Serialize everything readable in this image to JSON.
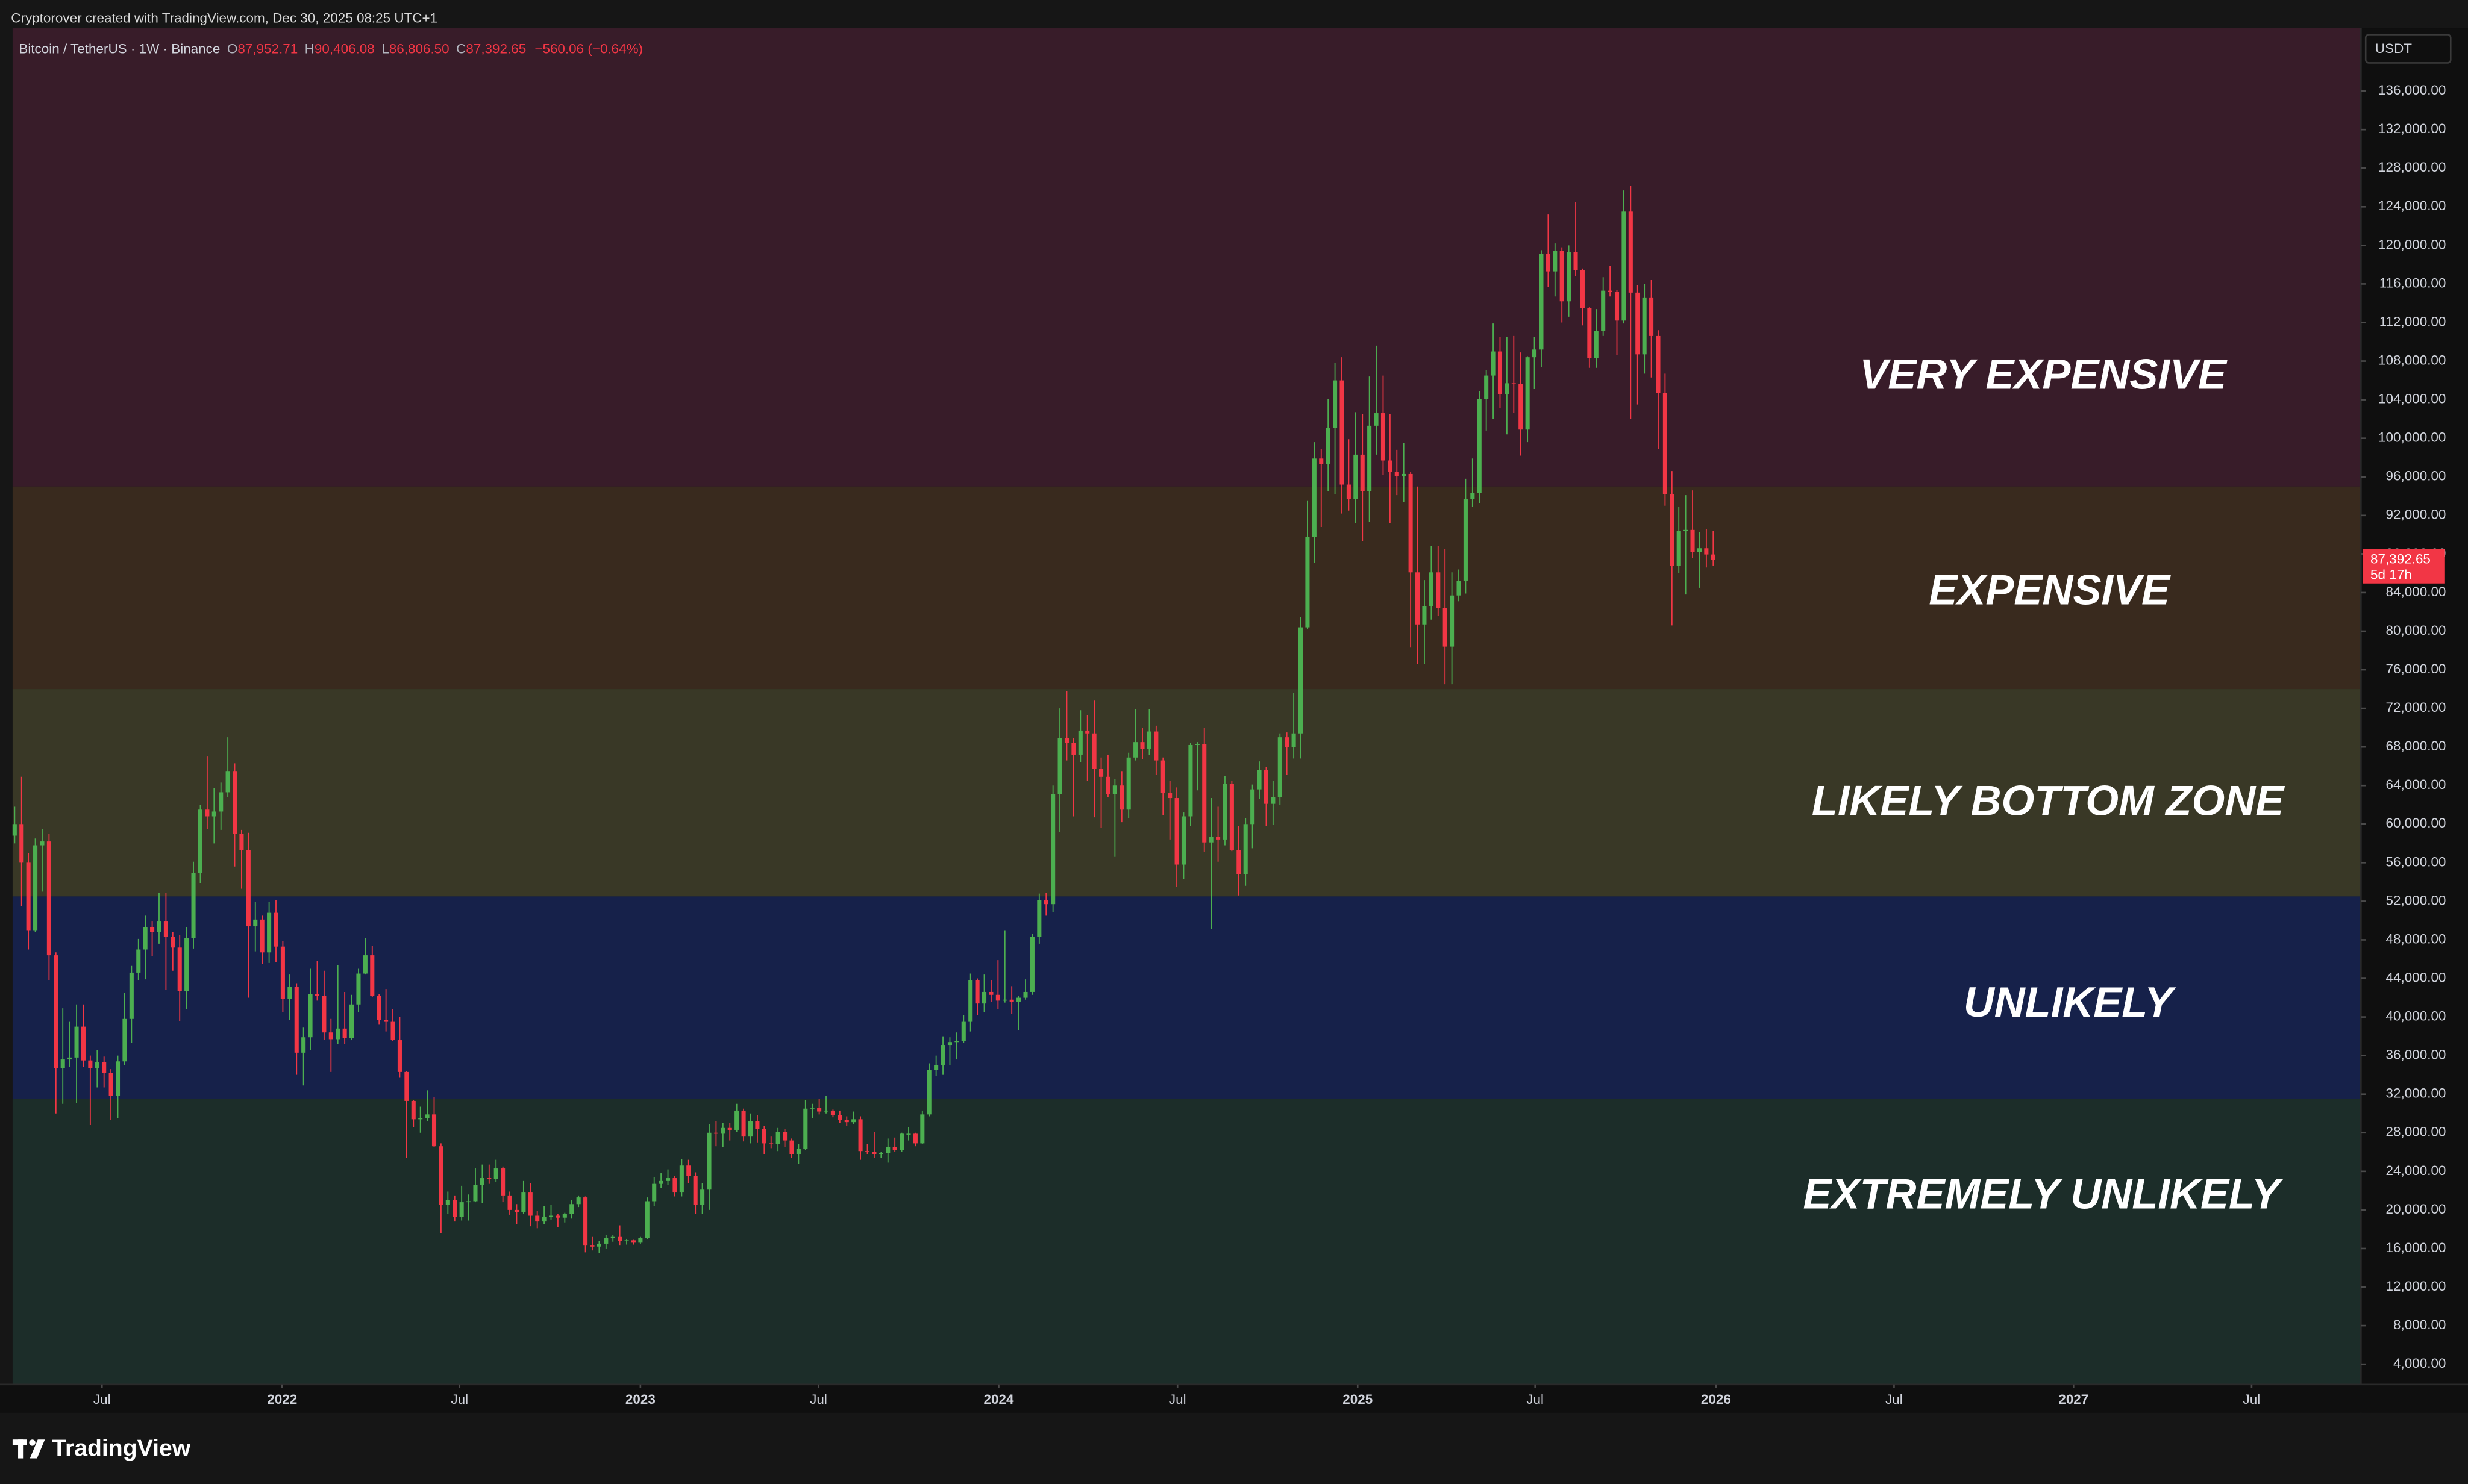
{
  "chart_data": {
    "type": "candlestick",
    "header": "Cryptorover created with TradingView.com, Dec 30, 2025 08:25 UTC+1",
    "symbol": "Bitcoin / TetherUS · 1W · Binance",
    "ohlc_legend": [
      {
        "key": "O",
        "value": "87,952.71"
      },
      {
        "key": "H",
        "value": "90,406.08"
      },
      {
        "key": "L",
        "value": "86,806.50"
      },
      {
        "key": "C",
        "value": "87,392.65"
      }
    ],
    "change": "−560.06 (−0.64%)",
    "currency": "USDT",
    "brand": "TradingView",
    "price_tag": {
      "label": "87,392.65",
      "countdown": "5d 17h"
    },
    "up_color": "#4caf50",
    "down_color": "#f23645",
    "grid": false,
    "zones": [
      {
        "label": "VERY EXPENSIVE",
        "from": 95000,
        "to": 142500,
        "color": "#381c29"
      },
      {
        "label": "EXPENSIVE",
        "from": 74000,
        "to": 95000,
        "color": "#392a1e"
      },
      {
        "label": "LIKELY BOTTOM ZONE",
        "from": 52500,
        "to": 74000,
        "color": "#393826"
      },
      {
        "label": "UNLIKELY",
        "from": 31500,
        "to": 52500,
        "color": "#16214a"
      },
      {
        "label": "EXTREMELY UNLIKELY",
        "from": 1900,
        "to": 31500,
        "color": "#1c2d29"
      }
    ],
    "xlim": [
      -0.3,
      341.2
    ],
    "xticks": [
      {
        "value": 12.7,
        "label": "Jul"
      },
      {
        "value": 38.9,
        "label": "2022"
      },
      {
        "value": 64.7,
        "label": "Jul"
      },
      {
        "value": 91.0,
        "label": "2023"
      },
      {
        "value": 116.9,
        "label": "Jul"
      },
      {
        "value": 143.1,
        "label": "2024"
      },
      {
        "value": 169.1,
        "label": "Jul"
      },
      {
        "value": 195.3,
        "label": "2025"
      },
      {
        "value": 221.1,
        "label": "Jul"
      },
      {
        "value": 247.4,
        "label": "2026"
      },
      {
        "value": 273.3,
        "label": "Jul"
      },
      {
        "value": 299.4,
        "label": "2027"
      },
      {
        "value": 325.3,
        "label": "Jul"
      }
    ],
    "ylim": [
      1900,
      142500
    ],
    "yticks": [
      {
        "value": 4000,
        "label": "4,000.00"
      },
      {
        "value": 8000,
        "label": "8,000.00"
      },
      {
        "value": 12000,
        "label": "12,000.00"
      },
      {
        "value": 16000,
        "label": "16,000.00"
      },
      {
        "value": 20000,
        "label": "20,000.00"
      },
      {
        "value": 24000,
        "label": "24,000.00"
      },
      {
        "value": 28000,
        "label": "28,000.00"
      },
      {
        "value": 32000,
        "label": "32,000.00"
      },
      {
        "value": 36000,
        "label": "36,000.00"
      },
      {
        "value": 40000,
        "label": "40,000.00"
      },
      {
        "value": 44000,
        "label": "44,000.00"
      },
      {
        "value": 48000,
        "label": "48,000.00"
      },
      {
        "value": 52000,
        "label": "52,000.00"
      },
      {
        "value": 56000,
        "label": "56,000.00"
      },
      {
        "value": 60000,
        "label": "60,000.00"
      },
      {
        "value": 64000,
        "label": "64,000.00"
      },
      {
        "value": 68000,
        "label": "68,000.00"
      },
      {
        "value": 72000,
        "label": "72,000.00"
      },
      {
        "value": 76000,
        "label": "76,000.00"
      },
      {
        "value": 80000,
        "label": "80,000.00"
      },
      {
        "value": 84000,
        "label": "84,000.00"
      },
      {
        "value": 88000,
        "label": "88,000.00"
      },
      {
        "value": 92000,
        "label": "92,000.00"
      },
      {
        "value": 96000,
        "label": "96,000.00"
      },
      {
        "value": 100000,
        "label": "100,000.00"
      },
      {
        "value": 104000,
        "label": "104,000.00"
      },
      {
        "value": 108000,
        "label": "108,000.00"
      },
      {
        "value": 112000,
        "label": "112,000.00"
      },
      {
        "value": 116000,
        "label": "116,000.00"
      },
      {
        "value": 120000,
        "label": "120,000.00"
      },
      {
        "value": 124000,
        "label": "124,000.00"
      },
      {
        "value": 128000,
        "label": "128,000.00"
      },
      {
        "value": 132000,
        "label": "132,000.00"
      },
      {
        "value": 136000,
        "label": "136,000.00"
      }
    ],
    "open": [
      58800,
      60000,
      56000,
      49000,
      57800,
      58200,
      46400,
      34700,
      35600,
      35800,
      39000,
      35500,
      34700,
      35300,
      34200,
      31800,
      35400,
      39800,
      44600,
      47000,
      49300,
      48800,
      49900,
      48300,
      47200,
      42700,
      48200,
      54900,
      61500,
      60800,
      61300,
      63300,
      65500,
      59000,
      57300,
      49400,
      50100,
      46700,
      50800,
      47300,
      41900,
      43100,
      36300,
      37900,
      42400,
      42200,
      38400,
      37700,
      38800,
      37800,
      41300,
      44500,
      46400,
      42200,
      39700,
      39500,
      37600,
      34300,
      31300,
      29400,
      29500,
      29900,
      26600,
      20500,
      21000,
      19300,
      20800,
      20900,
      22600,
      23300,
      23200,
      24300,
      21500,
      20000,
      19800,
      21800,
      19400,
      18800,
      19300,
      19400,
      19200,
      19600,
      20600,
      21300,
      16300,
      16200,
      16500,
      17100,
      17200,
      16800,
      16850,
      16600,
      17100,
      20900,
      22700,
      23000,
      23300,
      21800,
      24600,
      23500,
      20500,
      22100,
      28000,
      27900,
      28500,
      28300,
      30300,
      27600,
      29200,
      28400,
      26900,
      26800,
      28100,
      27200,
      25800,
      26300,
      30500,
      30600,
      30200,
      30300,
      29800,
      29300,
      29100,
      29400,
      26100,
      26000,
      25800,
      25900,
      26500,
      26200,
      27900,
      27900,
      26900,
      29900,
      34500,
      35000,
      37100,
      37400,
      37500,
      39500,
      43800,
      41400,
      42600,
      42300,
      41700,
      41800,
      41600,
      42000,
      42600,
      48300,
      52100,
      51700,
      63100,
      68900,
      68400,
      67200,
      69700,
      69400,
      65700,
      64900,
      63100,
      64000,
      61500,
      66900,
      68500,
      67800,
      69600,
      66600,
      63200,
      62700,
      55800,
      60800,
      68200,
      68300,
      58100,
      58700,
      58400,
      64200,
      57300,
      54800,
      60000,
      63600,
      65600,
      62100,
      62800,
      69000,
      68000,
      69400,
      80400,
      89800,
      97900,
      97300,
      101100,
      106000,
      95200,
      93700,
      98300,
      94500,
      101300,
      102600,
      97700,
      96500,
      96100,
      96300,
      86100,
      80700,
      82600,
      86100,
      82400,
      78400,
      83700,
      85200,
      93700,
      94300,
      104100,
      106500,
      109000,
      104600,
      105700,
      105600,
      100900,
      108400,
      109200,
      119100,
      117300,
      119400,
      114200,
      119300,
      117400,
      113500,
      108300,
      111100,
      115300,
      115200,
      112200,
      123500,
      115100,
      108700,
      114600,
      110600,
      104700,
      94200,
      86800,
      90400,
      90500,
      88200,
      88600,
      87952.71
    ],
    "high": [
      61800,
      64900,
      57000,
      58500,
      59500,
      59000,
      46700,
      40900,
      39500,
      41300,
      41300,
      36000,
      36600,
      35900,
      34600,
      36000,
      42500,
      45300,
      48100,
      50500,
      49900,
      52900,
      52900,
      48800,
      48500,
      49300,
      56100,
      62000,
      67000,
      63700,
      64300,
      69000,
      66300,
      59400,
      59100,
      51900,
      50500,
      51900,
      52100,
      47900,
      44400,
      43500,
      38900,
      45000,
      45800,
      44800,
      39800,
      45400,
      42600,
      42300,
      45000,
      48200,
      47400,
      42400,
      42900,
      40800,
      40000,
      34400,
      31400,
      30700,
      32400,
      31700,
      26900,
      21900,
      21500,
      22500,
      21600,
      24300,
      24700,
      24700,
      25200,
      24500,
      21900,
      20600,
      23000,
      22800,
      19900,
      20400,
      20500,
      19600,
      19700,
      21000,
      21500,
      21400,
      17200,
      16800,
      17400,
      17400,
      18400,
      17000,
      16900,
      17200,
      21300,
      23400,
      23800,
      24200,
      23500,
      25300,
      25200,
      23900,
      22800,
      28900,
      29200,
      29000,
      29000,
      31000,
      30500,
      30000,
      29800,
      28700,
      27600,
      28500,
      28400,
      27400,
      26800,
      31400,
      31000,
      31500,
      31800,
      30400,
      30300,
      29700,
      30200,
      29700,
      26800,
      28100,
      26000,
      27400,
      27500,
      28000,
      28600,
      28000,
      30300,
      35200,
      36000,
      38000,
      37900,
      38400,
      40200,
      44500,
      44000,
      44400,
      43800,
      45900,
      49000,
      43200,
      42200,
      43900,
      48600,
      52800,
      52900,
      64000,
      72000,
      73800,
      68900,
      71800,
      71300,
      72800,
      66900,
      67200,
      64700,
      65500,
      67400,
      71900,
      70000,
      71900,
      70200,
      66900,
      64500,
      63800,
      61200,
      68400,
      68500,
      70000,
      62700,
      61800,
      65000,
      64500,
      59800,
      60600,
      64100,
      66500,
      65900,
      64500,
      69400,
      69500,
      73600,
      81500,
      93500,
      99600,
      98900,
      104100,
      107800,
      108400,
      99900,
      102700,
      102500,
      106400,
      109600,
      106500,
      102500,
      98800,
      99500,
      96500,
      95000,
      85300,
      88800,
      88800,
      88500,
      86100,
      86400,
      95800,
      97900,
      104900,
      107100,
      111900,
      110500,
      110500,
      110600,
      108900,
      108500,
      110500,
      119500,
      123200,
      120200,
      119800,
      120000,
      124500,
      117600,
      113600,
      113400,
      116700,
      117900,
      115400,
      125700,
      126200,
      115900,
      116000,
      116400,
      111200,
      106700,
      96600,
      92900,
      94100,
      94600,
      90300,
      90600,
      90406.08
    ],
    "low": [
      58000,
      51500,
      47000,
      48800,
      53000,
      43800,
      30000,
      31000,
      34800,
      31100,
      34800,
      28800,
      32700,
      32700,
      29300,
      29500,
      35000,
      37300,
      43800,
      43900,
      46300,
      47600,
      42800,
      44800,
      39600,
      40800,
      47100,
      53900,
      59500,
      58000,
      59400,
      62800,
      55600,
      53300,
      42000,
      46800,
      45500,
      45600,
      45700,
      40500,
      39700,
      34000,
      32900,
      36600,
      41700,
      37600,
      34300,
      37200,
      37200,
      37600,
      40500,
      44400,
      42100,
      39200,
      38500,
      37500,
      33700,
      25400,
      28600,
      28000,
      29200,
      26500,
      17600,
      19600,
      18800,
      18900,
      18900,
      20800,
      20700,
      22700,
      22900,
      20800,
      19500,
      18500,
      19600,
      18300,
      18100,
      18500,
      19000,
      18200,
      18700,
      19100,
      20300,
      15600,
      15800,
      15500,
      16000,
      16700,
      16300,
      16400,
      16400,
      16500,
      17000,
      20400,
      22300,
      22600,
      21400,
      21400,
      22800,
      19600,
      19600,
      20000,
      26600,
      26500,
      27200,
      28100,
      27100,
      26900,
      27000,
      25800,
      26400,
      26100,
      26500,
      25400,
      24800,
      26200,
      29500,
      29900,
      30000,
      29600,
      29000,
      28700,
      28900,
      25200,
      25800,
      25400,
      25400,
      24900,
      26000,
      26000,
      27200,
      26600,
      26800,
      29700,
      33900,
      34000,
      35000,
      35600,
      37300,
      38500,
      40200,
      40500,
      41600,
      40800,
      41500,
      40300,
      38600,
      41800,
      42300,
      47600,
      50500,
      50900,
      59200,
      66600,
      60800,
      66400,
      64500,
      60700,
      59600,
      62800,
      56600,
      60200,
      60600,
      66600,
      66700,
      67200,
      65100,
      60900,
      58400,
      53500,
      54300,
      59800,
      63500,
      57100,
      49100,
      56100,
      57800,
      57200,
      52600,
      53600,
      57500,
      62600,
      59800,
      59900,
      62000,
      65100,
      66800,
      66800,
      80200,
      87100,
      90800,
      94500,
      94200,
      92200,
      92500,
      91200,
      89300,
      91300,
      98300,
      96200,
      91200,
      94100,
      93400,
      78300,
      76600,
      76600,
      81200,
      81600,
      74500,
      74500,
      83100,
      83900,
      92900,
      93300,
      100800,
      102000,
      103100,
      100400,
      102600,
      98200,
      99600,
      105100,
      107400,
      115700,
      114700,
      112000,
      112600,
      116800,
      111700,
      107300,
      107300,
      110600,
      114700,
      108600,
      111900,
      102000,
      103500,
      106700,
      106300,
      98900,
      93000,
      80600,
      86000,
      83800,
      87600,
      84500,
      86600,
      86806.5
    ],
    "close": [
      60000,
      56000,
      49000,
      57800,
      58200,
      46400,
      34700,
      35600,
      35800,
      39000,
      35500,
      34700,
      35300,
      34200,
      31800,
      35400,
      39800,
      44600,
      47000,
      49300,
      48800,
      49900,
      48300,
      47200,
      42700,
      48200,
      54900,
      61500,
      60800,
      61300,
      63300,
      65500,
      59000,
      57300,
      49400,
      50100,
      46700,
      50800,
      47300,
      41900,
      43100,
      36300,
      37900,
      42400,
      42200,
      38400,
      37700,
      38800,
      37800,
      41300,
      44500,
      46400,
      42200,
      39700,
      39500,
      37600,
      34300,
      31300,
      29400,
      29500,
      29900,
      26600,
      20500,
      21000,
      19300,
      20800,
      20900,
      22600,
      23300,
      23200,
      24300,
      21500,
      20000,
      19800,
      21800,
      19400,
      18800,
      19300,
      19400,
      19200,
      19600,
      20600,
      21300,
      16300,
      16200,
      16500,
      17100,
      17200,
      16800,
      16850,
      16600,
      17100,
      20900,
      22700,
      23000,
      23300,
      21800,
      24600,
      23500,
      20500,
      22100,
      28000,
      27900,
      28500,
      28300,
      30300,
      27600,
      29200,
      28400,
      26900,
      26800,
      28100,
      27200,
      25800,
      26300,
      30500,
      30600,
      30200,
      30300,
      29800,
      29300,
      29100,
      29400,
      26100,
      26000,
      25800,
      25900,
      26500,
      26200,
      27900,
      27900,
      26900,
      29900,
      34500,
      35000,
      37100,
      37400,
      37500,
      39500,
      43800,
      41400,
      42600,
      42300,
      41700,
      41800,
      41600,
      42000,
      42600,
      48300,
      52100,
      51700,
      63100,
      68900,
      68400,
      67200,
      69700,
      69400,
      65700,
      64900,
      63100,
      64000,
      61500,
      66900,
      68500,
      67800,
      69600,
      66600,
      63200,
      62700,
      55800,
      60800,
      68200,
      68300,
      58100,
      58700,
      58400,
      64200,
      57300,
      54800,
      60000,
      63600,
      65600,
      62100,
      62800,
      69000,
      68000,
      69400,
      80400,
      89800,
      97900,
      97300,
      101100,
      106000,
      95200,
      93700,
      98300,
      94500,
      101300,
      102600,
      97700,
      96500,
      96100,
      96300,
      86100,
      80700,
      82600,
      86100,
      82400,
      78400,
      83700,
      85200,
      93700,
      94300,
      104100,
      106500,
      109000,
      104600,
      105700,
      105600,
      100900,
      108400,
      109200,
      119100,
      117300,
      119400,
      114200,
      119300,
      117400,
      113500,
      108300,
      111100,
      115300,
      115200,
      112200,
      123500,
      115100,
      108700,
      114600,
      110600,
      104700,
      94200,
      86800,
      90400,
      90500,
      88200,
      88600,
      87952.71,
      87392.65
    ]
  }
}
